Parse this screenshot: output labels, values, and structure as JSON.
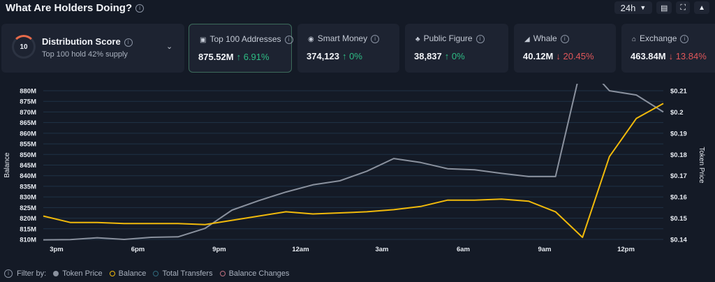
{
  "header": {
    "title": "What Are Holders Doing?",
    "range": "24h"
  },
  "distribution": {
    "score": "10",
    "title": "Distribution Score",
    "subtitle": "Top 100 hold 42% supply"
  },
  "cards": [
    {
      "label": "Top 100 Addresses",
      "value": "875.52M",
      "change": "6.91%",
      "dir": "up",
      "icon": "wallet-icon",
      "glyph": "▣",
      "selected": true
    },
    {
      "label": "Smart Money",
      "value": "374,123",
      "change": "0%",
      "dir": "up",
      "icon": "smart-money-icon",
      "glyph": "◉"
    },
    {
      "label": "Public Figure",
      "value": "38,837",
      "change": "0%",
      "dir": "up",
      "icon": "public-figure-icon",
      "glyph": "♣"
    },
    {
      "label": "Whale",
      "value": "40.12M",
      "change": "20.45%",
      "dir": "down",
      "icon": "whale-icon",
      "glyph": "◢"
    },
    {
      "label": "Exchange",
      "value": "463.84M",
      "change": "13.84%",
      "dir": "down",
      "icon": "exchange-icon",
      "glyph": "⌂"
    }
  ],
  "legend": {
    "filter_label": "Filter by:",
    "items": [
      {
        "label": "Token Price",
        "color": "#8a919e",
        "filled": true
      },
      {
        "label": "Balance",
        "color": "#f0b90b",
        "filled": false
      },
      {
        "label": "Total Transfers",
        "color": "#2f6b7d",
        "filled": false
      },
      {
        "label": "Balance Changes",
        "color": "#c0707f",
        "filled": false
      }
    ]
  },
  "chart_data": {
    "type": "line",
    "ylabel": "Balance",
    "y2label": "Token Price",
    "ylim": [
      810,
      880
    ],
    "y2lim": [
      0.14,
      0.21
    ],
    "yticks": [
      "880M",
      "875M",
      "870M",
      "865M",
      "860M",
      "855M",
      "850M",
      "845M",
      "840M",
      "835M",
      "830M",
      "825M",
      "820M",
      "815M",
      "810M"
    ],
    "y2ticks": [
      "$0.21",
      "$0.2",
      "$0.19",
      "$0.18",
      "$0.17",
      "$0.16",
      "$0.15",
      "$0.14"
    ],
    "xticks": [
      "3pm",
      "6pm",
      "9pm",
      "12am",
      "3am",
      "6am",
      "9am",
      "12pm"
    ],
    "grid": true,
    "series": [
      {
        "name": "Token Price",
        "color": "#8a919e",
        "axis": "right",
        "values": [
          0.1398,
          0.1399,
          0.1408,
          0.14,
          0.141,
          0.1412,
          0.1452,
          0.1538,
          0.1583,
          0.1623,
          0.1657,
          0.1676,
          0.1721,
          0.1781,
          0.1762,
          0.1733,
          0.1728,
          0.1711,
          0.1696,
          0.1696,
          0.224,
          0.21,
          0.208,
          0.2
        ]
      },
      {
        "name": "Balance",
        "color": "#f0b90b",
        "axis": "left",
        "values": [
          821,
          818,
          818,
          817.5,
          817.5,
          817.5,
          817,
          819,
          821,
          823,
          822,
          822.5,
          823,
          824,
          825.5,
          828.5,
          828.5,
          829,
          828,
          823,
          811,
          849,
          867,
          874
        ]
      }
    ]
  }
}
